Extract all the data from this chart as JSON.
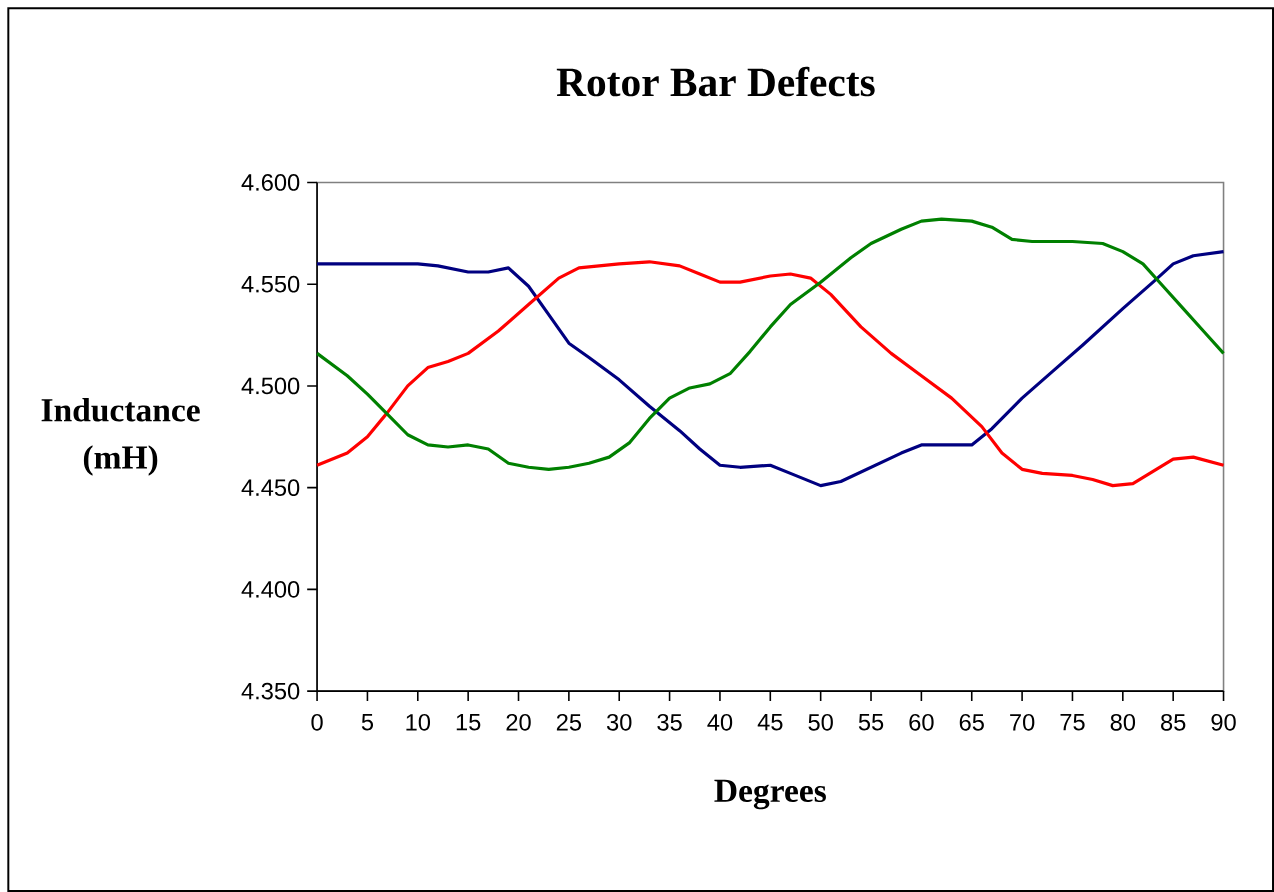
{
  "chart_data": {
    "type": "line",
    "title": "Rotor Bar Defects",
    "xlabel": "Degrees",
    "ylabel": "Inductance (mH)",
    "xlim": [
      0,
      90
    ],
    "xticks": [
      0,
      5,
      10,
      15,
      20,
      25,
      30,
      35,
      40,
      45,
      50,
      55,
      60,
      65,
      70,
      75,
      80,
      85,
      90
    ],
    "ylim": [
      4.35,
      4.6
    ],
    "yticks": [
      {
        "value": 4.35,
        "label": "4.350"
      },
      {
        "value": 4.4,
        "label": "4.400"
      },
      {
        "value": 4.45,
        "label": "4.450"
      },
      {
        "value": 4.5,
        "label": "4.500"
      },
      {
        "value": 4.55,
        "label": "4.550"
      },
      {
        "value": 4.6,
        "label": "4.600"
      }
    ],
    "marker": "none",
    "line_style": "solid",
    "series": [
      {
        "color": "#000080",
        "x": [
          0,
          10,
          12,
          15,
          17,
          19,
          21,
          23,
          25,
          27,
          30,
          33,
          36,
          38,
          40,
          42,
          45,
          47,
          50,
          52,
          55,
          58,
          60,
          62,
          65,
          67,
          70,
          73,
          76,
          80,
          83,
          85,
          87,
          90
        ],
        "values": [
          4.56,
          4.56,
          4.559,
          4.556,
          4.556,
          4.558,
          4.549,
          4.535,
          4.521,
          4.514,
          4.503,
          4.49,
          4.478,
          4.469,
          4.461,
          4.46,
          4.461,
          4.457,
          4.451,
          4.453,
          4.46,
          4.467,
          4.471,
          4.471,
          4.471,
          4.479,
          4.494,
          4.507,
          4.52,
          4.538,
          4.551,
          4.56,
          4.564,
          4.566
        ]
      },
      {
        "color": "#ff0000",
        "x": [
          0,
          3,
          5,
          7,
          9,
          11,
          13,
          15,
          18,
          21,
          24,
          26,
          28,
          30,
          33,
          36,
          38,
          40,
          42,
          45,
          47,
          49,
          51,
          54,
          57,
          60,
          63,
          66,
          68,
          70,
          72,
          75,
          77,
          79,
          81,
          83,
          85,
          87,
          90
        ],
        "values": [
          4.461,
          4.467,
          4.475,
          4.487,
          4.5,
          4.509,
          4.512,
          4.516,
          4.527,
          4.54,
          4.553,
          4.558,
          4.559,
          4.56,
          4.561,
          4.559,
          4.555,
          4.551,
          4.551,
          4.554,
          4.555,
          4.553,
          4.545,
          4.529,
          4.516,
          4.505,
          4.494,
          4.48,
          4.467,
          4.459,
          4.457,
          4.456,
          4.454,
          4.451,
          4.452,
          4.458,
          4.464,
          4.465,
          4.461
        ]
      },
      {
        "color": "#008000",
        "x": [
          0,
          3,
          5,
          7,
          9,
          11,
          13,
          15,
          17,
          19,
          21,
          23,
          25,
          27,
          29,
          31,
          33,
          35,
          37,
          39,
          41,
          43,
          45,
          47,
          50,
          53,
          55,
          58,
          60,
          62,
          65,
          67,
          69,
          71,
          75,
          78,
          80,
          82,
          84,
          86,
          88,
          90
        ],
        "values": [
          4.516,
          4.505,
          4.496,
          4.486,
          4.476,
          4.471,
          4.47,
          4.471,
          4.469,
          4.462,
          4.46,
          4.459,
          4.46,
          4.462,
          4.465,
          4.472,
          4.484,
          4.494,
          4.499,
          4.501,
          4.506,
          4.517,
          4.529,
          4.54,
          4.551,
          4.563,
          4.57,
          4.577,
          4.581,
          4.582,
          4.581,
          4.578,
          4.572,
          4.571,
          4.571,
          4.57,
          4.566,
          4.56,
          4.549,
          4.538,
          4.527,
          4.516
        ]
      }
    ]
  }
}
